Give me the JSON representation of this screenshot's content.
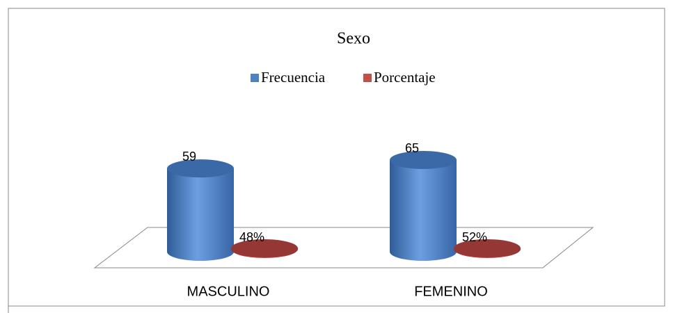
{
  "chart_data": {
    "type": "bar3d",
    "title": "Sexo",
    "categories": [
      "MASCULINO",
      "FEMENINO"
    ],
    "series": [
      {
        "name": "Frecuencia",
        "color": "#4f81bd",
        "values": [
          59,
          65
        ]
      },
      {
        "name": "Porcentaje",
        "color": "#c0504d",
        "values": [
          0.48,
          0.52
        ],
        "value_labels": [
          "48%",
          "52%"
        ]
      }
    ],
    "legend": "top"
  }
}
